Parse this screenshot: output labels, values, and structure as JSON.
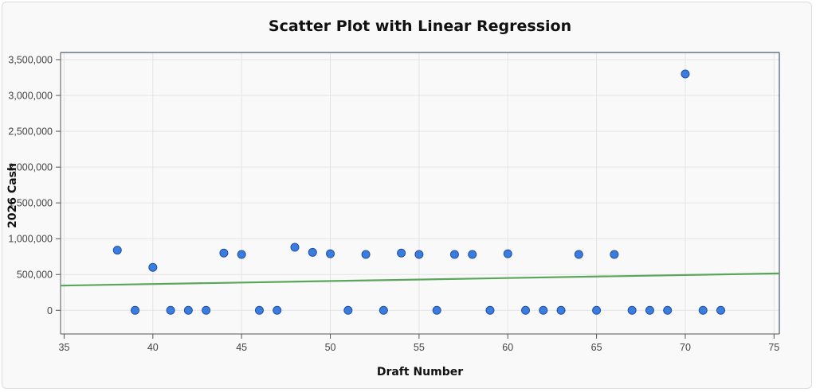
{
  "chart_data": {
    "type": "scatter",
    "title": "Scatter Plot with Linear Regression",
    "xlabel": "Draft Number",
    "ylabel": "2026 Cash",
    "xlim": [
      34.8,
      75.3
    ],
    "ylim": [
      -330000,
      3600000
    ],
    "xticks": [
      35,
      40,
      45,
      50,
      55,
      60,
      65,
      70,
      75
    ],
    "xtick_labels": [
      "35",
      "40",
      "45",
      "50",
      "55",
      "60",
      "65",
      "70",
      "75"
    ],
    "yticks": [
      0,
      500000,
      1000000,
      1500000,
      2000000,
      2500000,
      3000000,
      3500000
    ],
    "ytick_labels": [
      "0",
      "500,000",
      "1,000,000",
      "1,500,000",
      "2,000,000",
      "2,500,000",
      "3,000,000",
      "3,500,000"
    ],
    "grid": true,
    "points": [
      {
        "x": 38,
        "y": 840000
      },
      {
        "x": 39,
        "y": 0
      },
      {
        "x": 40,
        "y": 600000
      },
      {
        "x": 41,
        "y": 0
      },
      {
        "x": 42,
        "y": 0
      },
      {
        "x": 43,
        "y": 0
      },
      {
        "x": 44,
        "y": 800000
      },
      {
        "x": 45,
        "y": 780000
      },
      {
        "x": 46,
        "y": 0
      },
      {
        "x": 47,
        "y": 0
      },
      {
        "x": 48,
        "y": 880000
      },
      {
        "x": 49,
        "y": 810000
      },
      {
        "x": 50,
        "y": 790000
      },
      {
        "x": 51,
        "y": 0
      },
      {
        "x": 52,
        "y": 780000
      },
      {
        "x": 53,
        "y": 0
      },
      {
        "x": 54,
        "y": 800000
      },
      {
        "x": 55,
        "y": 780000
      },
      {
        "x": 56,
        "y": 0
      },
      {
        "x": 57,
        "y": 780000
      },
      {
        "x": 58,
        "y": 780000
      },
      {
        "x": 59,
        "y": 0
      },
      {
        "x": 60,
        "y": 790000
      },
      {
        "x": 61,
        "y": 0
      },
      {
        "x": 62,
        "y": 0
      },
      {
        "x": 63,
        "y": 0
      },
      {
        "x": 64,
        "y": 780000
      },
      {
        "x": 65,
        "y": 0
      },
      {
        "x": 66,
        "y": 780000
      },
      {
        "x": 67,
        "y": 0
      },
      {
        "x": 68,
        "y": 0
      },
      {
        "x": 69,
        "y": 0
      },
      {
        "x": 70,
        "y": 3300000
      },
      {
        "x": 71,
        "y": 0
      },
      {
        "x": 72,
        "y": 0
      }
    ],
    "regression_line": {
      "x": [
        34.8,
        75.3
      ],
      "y": [
        345000,
        515000
      ]
    },
    "colors": {
      "point_fill": "#3b7ddd",
      "point_stroke": "#1f4fa8",
      "regression": "#5aa65a",
      "grid": "#e4e4e4",
      "axis": "#555555",
      "plot_border": "#4a5a70"
    }
  }
}
